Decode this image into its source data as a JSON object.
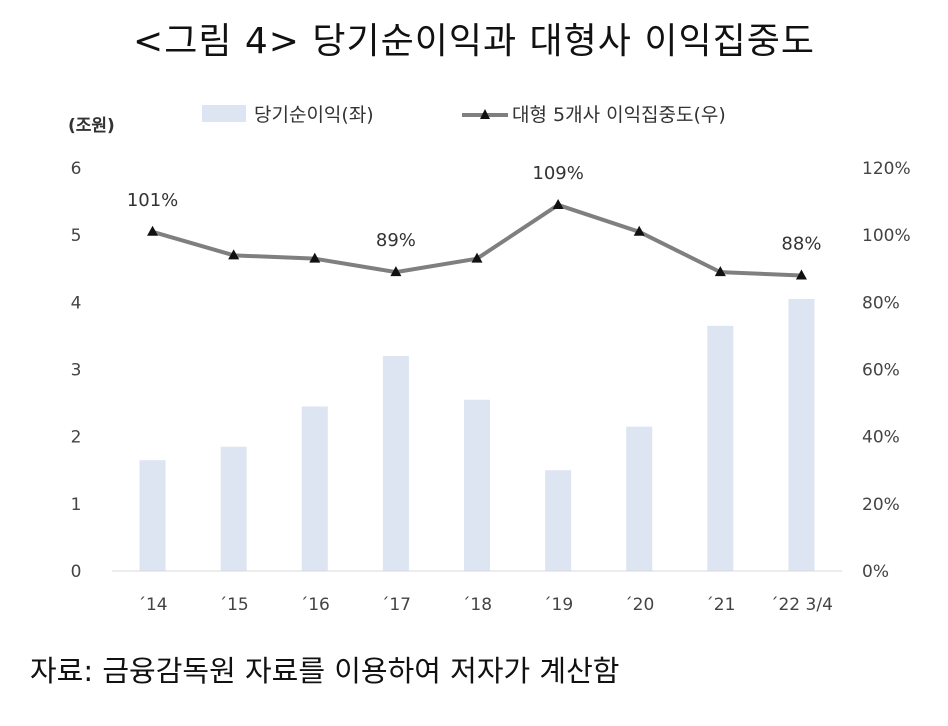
{
  "figure": {
    "title": "<그림 4> 당기순이익과 대형사 이익집중도",
    "source": "자료: 금융감독원 자료를 이용하여 저자가 계산함"
  },
  "chart_data": {
    "type": "bar",
    "categories": [
      "´14",
      "´15",
      "´16",
      "´17",
      "´18",
      "´19",
      "´20",
      "´21",
      "´22 3/4"
    ],
    "y_unit_label": "(조원)",
    "ylim": [
      0,
      6
    ],
    "y_ticks": [
      "0",
      "1",
      "2",
      "3",
      "4",
      "5",
      "6"
    ],
    "y2lim": [
      0,
      120
    ],
    "y2_ticks": [
      "0%",
      "20%",
      "40%",
      "60%",
      "80%",
      "100%",
      "120%"
    ],
    "grid": false,
    "legend_position": "top",
    "series": [
      {
        "name": "당기순이익(좌)",
        "type": "bar",
        "axis": "left",
        "color": "#dde4f2",
        "values": [
          1.65,
          1.85,
          2.45,
          3.2,
          2.55,
          1.5,
          2.15,
          3.65,
          4.05
        ]
      },
      {
        "name": "대형 5개사 이익집중도(우)",
        "type": "line",
        "axis": "right",
        "color": "#7f7f7f",
        "marker": "triangle",
        "values": [
          101,
          94,
          93,
          89,
          93,
          109,
          101,
          89,
          88
        ]
      }
    ],
    "annotations": [
      {
        "index": 0,
        "text": "101%"
      },
      {
        "index": 3,
        "text": "89%"
      },
      {
        "index": 5,
        "text": "109%"
      },
      {
        "index": 8,
        "text": "88%"
      }
    ]
  }
}
